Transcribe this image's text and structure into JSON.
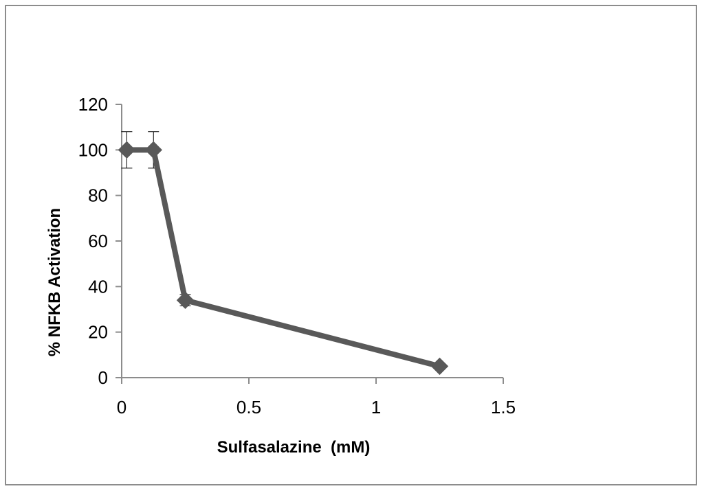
{
  "chart_data": {
    "type": "line",
    "title": "",
    "xlabel": "Sulfasalazine  (mM)",
    "ylabel": "% NFKB Activation",
    "xlim": [
      0,
      1.5
    ],
    "ylim": [
      0,
      120
    ],
    "xticks": [
      0,
      0.5,
      1,
      1.5
    ],
    "xtick_labels": [
      "0",
      "0.5",
      "1",
      "1.5"
    ],
    "yticks": [
      0,
      20,
      40,
      60,
      80,
      100,
      120
    ],
    "ytick_labels": [
      "0",
      "20",
      "40",
      "60",
      "80",
      "100",
      "120"
    ],
    "grid": false,
    "legend": "none",
    "series": [
      {
        "name": "% NFKB Activation",
        "color": "#595959",
        "marker": "diamond",
        "x": [
          0.02,
          0.125,
          0.25,
          1.25
        ],
        "y": [
          100,
          100,
          34,
          5
        ],
        "error": [
          8,
          8,
          2.5,
          0
        ]
      }
    ]
  }
}
